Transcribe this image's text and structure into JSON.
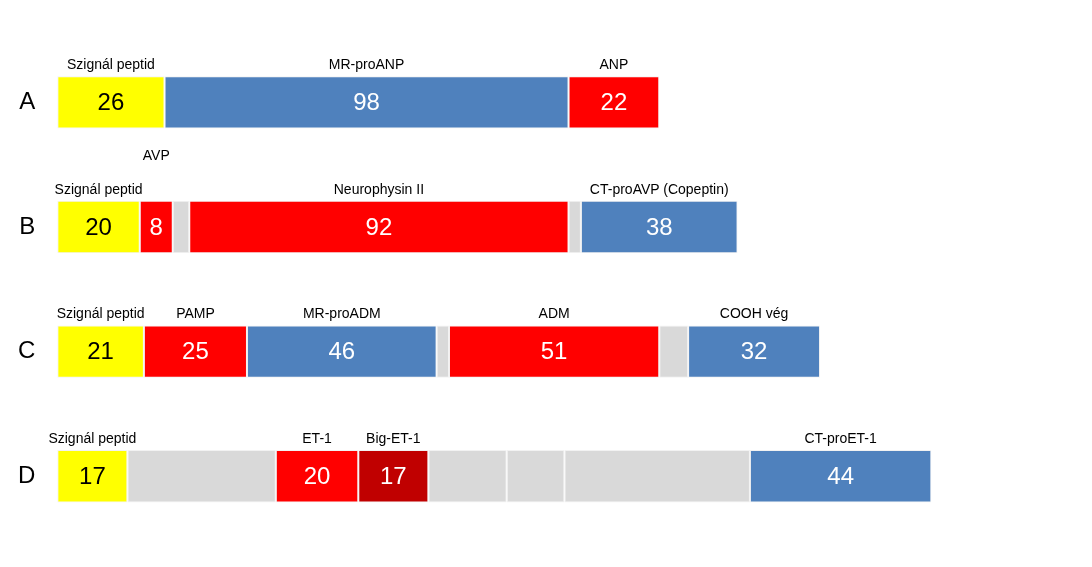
{
  "chart_data": {
    "type": "bar",
    "orientation": "horizontal",
    "stacked": true,
    "categories": [
      "A",
      "B",
      "C",
      "D"
    ],
    "tick_labels": "y",
    "legend": false,
    "series": [
      {
        "values": [
          26,
          20,
          21,
          17
        ],
        "colors": [
          "#ffff00",
          "#ffff00",
          "#ffff00",
          "#ffff00"
        ],
        "value_labels": [
          "26",
          "20",
          "21",
          "17"
        ]
      },
      {
        "values": [
          98,
          8,
          25,
          36
        ],
        "colors": [
          "#4f81bd",
          "#ff0000",
          "#ff0000",
          "#d9d9d9"
        ],
        "value_labels": [
          "98",
          "8",
          "25",
          null
        ]
      },
      {
        "values": [
          22,
          4,
          46,
          20
        ],
        "colors": [
          "#ff0000",
          "#d9d9d9",
          "#4f81bd",
          "#ff0000"
        ],
        "value_labels": [
          "22",
          null,
          "46",
          "20"
        ]
      },
      {
        "values": [
          null,
          92,
          3,
          17
        ],
        "colors": [
          null,
          "#ff0000",
          "#d9d9d9",
          "#c00000"
        ],
        "value_labels": [
          null,
          "92",
          null,
          "17"
        ]
      },
      {
        "values": [
          null,
          3,
          51,
          19
        ],
        "colors": [
          null,
          "#d9d9d9",
          "#ff0000",
          "#d9d9d9"
        ],
        "value_labels": [
          null,
          null,
          "51",
          null
        ]
      },
      {
        "values": [
          null,
          38,
          7,
          14
        ],
        "colors": [
          null,
          "#4f81bd",
          "#d9d9d9",
          "#d9d9d9"
        ],
        "value_labels": [
          null,
          "38",
          null,
          null
        ]
      },
      {
        "values": [
          null,
          null,
          32,
          45
        ],
        "colors": [
          null,
          null,
          "#4f81bd",
          "#d9d9d9"
        ],
        "value_labels": [
          null,
          null,
          "32",
          null
        ]
      },
      {
        "values": [
          null,
          null,
          null,
          44
        ],
        "colors": [
          null,
          null,
          null,
          "#4f81bd"
        ],
        "value_labels": [
          null,
          null,
          null,
          "44"
        ]
      }
    ],
    "annotations": [
      "Szignál peptid",
      "MR-proANP",
      "ANP",
      "Szignál peptid",
      "AVP",
      "Neurophysin II",
      "CT-proAVP (Copeptin)",
      "Szignál peptid",
      "PAMP",
      "MR-proADM",
      "ADM",
      "COOH vég",
      "Szignál peptid",
      "ET-1",
      "Big-ET-1",
      "CT-proET-1"
    ]
  }
}
